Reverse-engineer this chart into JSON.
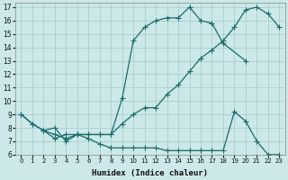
{
  "xlabel": "Humidex (Indice chaleur)",
  "bg_color": "#cce8e8",
  "grid_color": "#aacece",
  "line_color": "#1a6b6b",
  "xlim": [
    -0.5,
    23.5
  ],
  "ylim": [
    6,
    17.3
  ],
  "xticks": [
    0,
    1,
    2,
    3,
    4,
    5,
    6,
    7,
    8,
    9,
    10,
    11,
    12,
    13,
    14,
    15,
    16,
    17,
    18,
    19,
    20,
    21,
    22,
    23
  ],
  "yticks": [
    6,
    7,
    8,
    9,
    10,
    11,
    12,
    13,
    14,
    15,
    16,
    17
  ],
  "line_upper_x": [
    0,
    1,
    2,
    3,
    4,
    5,
    6,
    7,
    8,
    9,
    10,
    11,
    12,
    13,
    14,
    15,
    16,
    17,
    18,
    20
  ],
  "line_upper_y": [
    9.0,
    8.3,
    7.8,
    7.5,
    7.2,
    7.5,
    7.5,
    7.5,
    7.5,
    10.2,
    14.5,
    15.5,
    16.0,
    16.2,
    16.2,
    17.0,
    16.0,
    15.8,
    14.3,
    13.0
  ],
  "line_mid_x": [
    0,
    1,
    2,
    3,
    4,
    5,
    6,
    7,
    8,
    9,
    10,
    11,
    12,
    13,
    14,
    15,
    16,
    17,
    18,
    19,
    20,
    21,
    22,
    23
  ],
  "line_mid_y": [
    9.0,
    8.3,
    7.8,
    8.0,
    7.0,
    7.5,
    7.5,
    7.5,
    7.5,
    8.3,
    9.0,
    9.5,
    9.5,
    10.5,
    11.2,
    12.2,
    13.2,
    13.8,
    14.5,
    15.5,
    16.8,
    17.0,
    16.5,
    15.5
  ],
  "line_low_x": [
    2,
    3,
    4,
    5,
    6,
    7,
    8,
    9,
    10,
    11,
    12,
    13,
    14,
    15,
    16,
    17,
    18,
    19,
    20,
    21,
    22,
    23
  ],
  "line_low_y": [
    7.8,
    7.2,
    7.5,
    7.5,
    7.2,
    6.8,
    6.5,
    6.5,
    6.5,
    6.5,
    6.5,
    6.3,
    6.3,
    6.3,
    6.3,
    6.3,
    6.3,
    9.2,
    8.5,
    7.0,
    6.0,
    6.0
  ],
  "marker_size": 2.5,
  "linewidth": 0.9
}
